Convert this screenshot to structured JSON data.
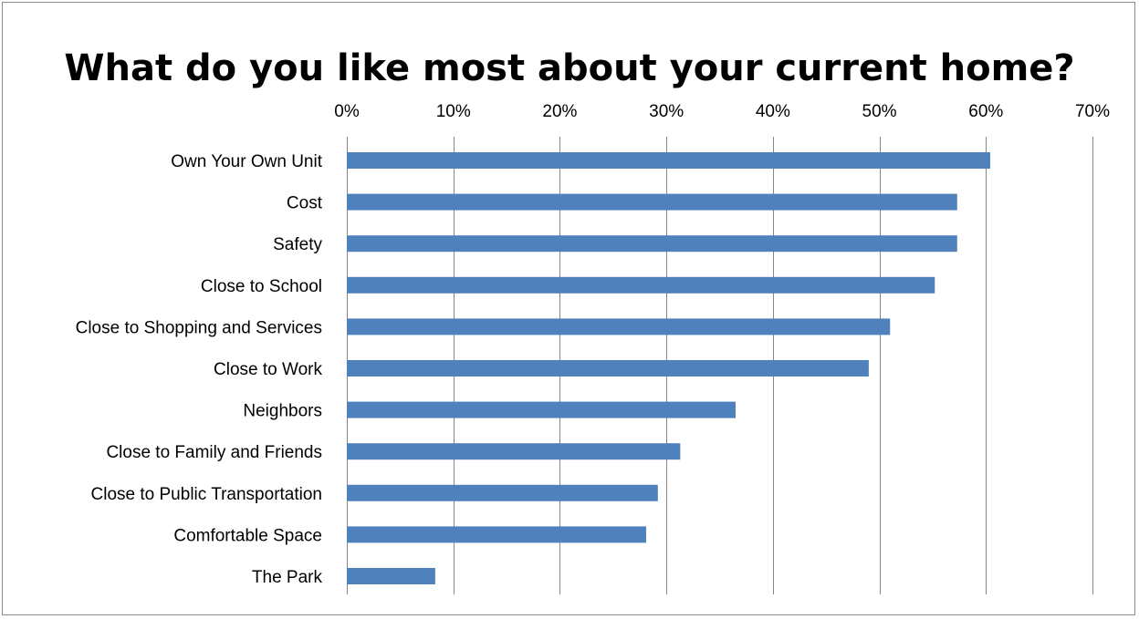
{
  "chart_data": {
    "type": "bar",
    "orientation": "horizontal",
    "title": "What do you like most about your current home?",
    "categories": [
      "Own Your Own Unit",
      "Cost",
      "Safety",
      "Close to School",
      "Close to Shopping and Services",
      "Close to Work",
      "Neighbors",
      "Close to Family and Friends",
      "Close to Public Transportation",
      "Comfortable Space",
      "The Park"
    ],
    "values": [
      60.4,
      57.3,
      57.3,
      55.2,
      51.0,
      49.0,
      36.5,
      31.3,
      29.2,
      28.1,
      8.3
    ],
    "value_axis": {
      "position": "top",
      "min": 0,
      "max": 70,
      "ticks": [
        0,
        10,
        20,
        30,
        40,
        50,
        60,
        70
      ],
      "tick_labels": [
        "0%",
        "10%",
        "20%",
        "30%",
        "40%",
        "50%",
        "60%",
        "70%"
      ]
    },
    "xlabel": "",
    "ylabel": "",
    "grid": true,
    "legend": "none",
    "bar_color": "#4f81bd",
    "grid_color": "#868686"
  }
}
